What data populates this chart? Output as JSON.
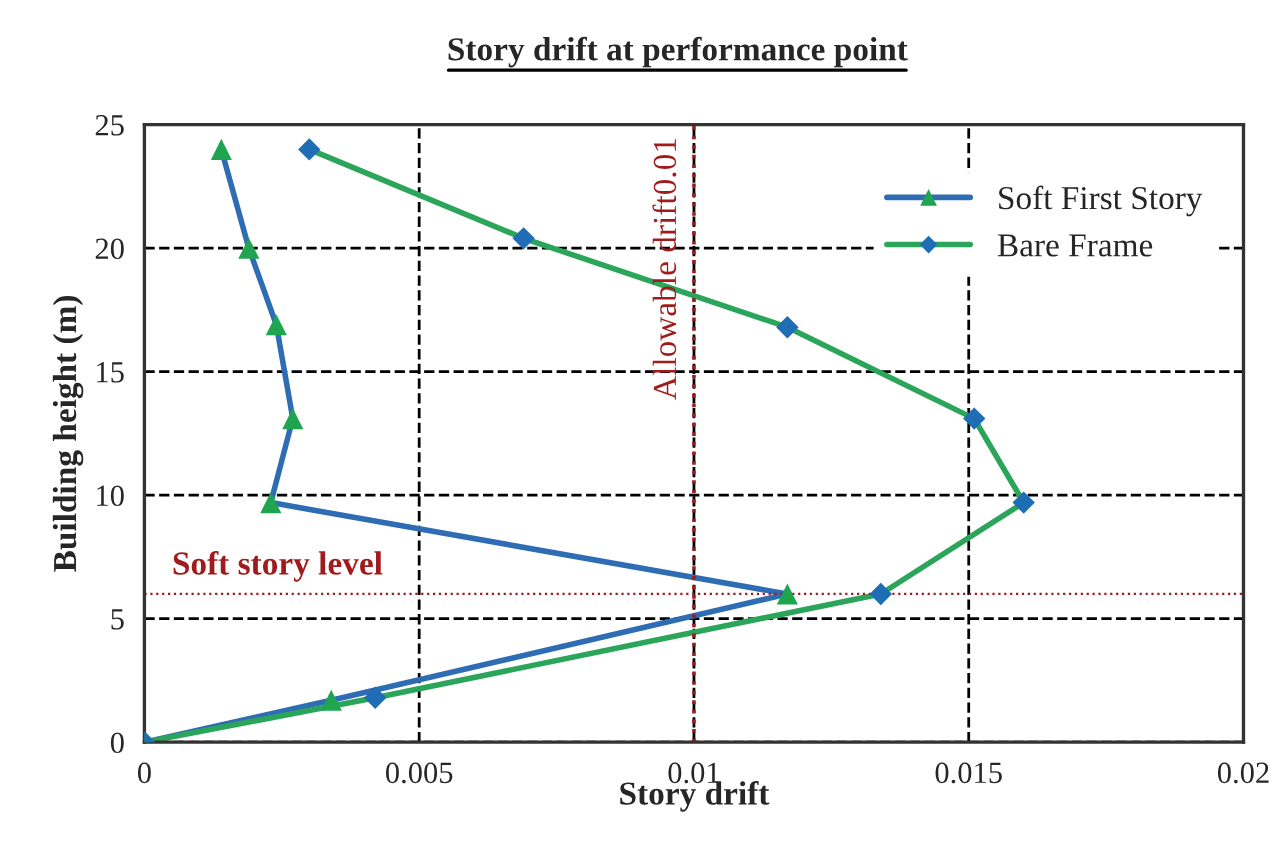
{
  "chart_data": {
    "type": "line",
    "title": "Story drift at performance point",
    "xlabel": "Story drift",
    "ylabel": "Building height (m)",
    "series": [
      {
        "name": "Soft First Story",
        "color": "#2e6db4",
        "colors": [
          "#1fa550",
          "#1fa550",
          "#1fa550",
          "#1fa550",
          "#1fa550",
          "#1fa550",
          "#1fa550",
          "#1fa550"
        ],
        "marker": "triangle",
        "x": [
          0.0014,
          0.0019,
          0.0024,
          0.0027,
          0.0023,
          0.0117,
          0.0034,
          0
        ],
        "values": [
          24.0,
          20.0,
          16.9,
          13.1,
          9.7,
          6.0,
          1.7,
          0
        ]
      },
      {
        "name": "Bare Frame",
        "color": "#2aa55a",
        "colors": [
          "#1f6db4",
          "#1f6db4",
          "#1f6db4",
          "#1f6db4",
          "#1f6db4",
          "#1f6db4",
          "#1f6db4",
          "#1f6db4"
        ],
        "marker": "diamond",
        "x": [
          0.003,
          0.0069,
          0.0117,
          0.0151,
          0.016,
          0.0134,
          0.0042,
          0
        ],
        "values": [
          24.0,
          20.4,
          16.8,
          13.1,
          9.7,
          6.0,
          1.8,
          0
        ]
      }
    ],
    "xlim": [
      0,
      0.02
    ],
    "xticks": [
      0,
      0.005,
      0.01,
      0.015,
      0.02
    ],
    "ylim": [
      0,
      25
    ],
    "yticks": [
      0,
      5,
      10,
      15,
      20,
      25
    ],
    "ref_lines": [
      {
        "axis": "x",
        "value": 0.01,
        "label": "Allowable drift0.01",
        "color": "#a01c1c",
        "line_style": "dotted"
      },
      {
        "axis": "y",
        "value": 6,
        "label": "Soft story level",
        "color": "#a01c1c",
        "line_style": "dotted"
      }
    ],
    "grid": true,
    "legend": "top right",
    "line_style": "solid"
  }
}
